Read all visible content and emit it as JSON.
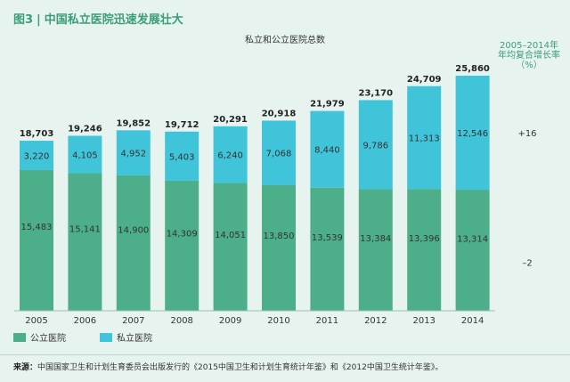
{
  "header": {
    "figure_label": "图3",
    "separator": "|",
    "title": "中国私立医院迅速发展壮大"
  },
  "growth_header": {
    "line1": "2005–2014年",
    "line2": "年均复合增长率",
    "line3": "（%）"
  },
  "legend": {
    "public": "公立医院",
    "private": "私立医院"
  },
  "source": {
    "label": "来源：",
    "text": "中国国家卫生和计划生育委员会出版发行的《2015中国卫生和计划生育统计年鉴》和《2012中国卫生统计年鉴》。"
  },
  "colors": {
    "public": "#4daf8a",
    "private": "#40c4d9",
    "accent": "#3a9e78"
  },
  "chart_data": {
    "type": "bar",
    "stacked": true,
    "title": "私立和公立医院总数",
    "categories": [
      "2005",
      "2006",
      "2007",
      "2008",
      "2009",
      "2010",
      "2011",
      "2012",
      "2013",
      "2014"
    ],
    "series": [
      {
        "name": "公立医院",
        "values": [
          15483,
          15141,
          14900,
          14309,
          14051,
          13850,
          13539,
          13384,
          13396,
          13314
        ],
        "labels": [
          "15,483",
          "15,141",
          "14,900",
          "14,309",
          "14,051",
          "13,850",
          "13,539",
          "13,384",
          "13,396",
          "13,314"
        ]
      },
      {
        "name": "私立医院",
        "values": [
          3220,
          4105,
          4952,
          5403,
          6240,
          7068,
          8440,
          9786,
          11313,
          12546
        ],
        "labels": [
          "3,220",
          "4,105",
          "4,952",
          "5,403",
          "6,240",
          "7,068",
          "8,440",
          "9,786",
          "11,313",
          "12,546"
        ]
      }
    ],
    "totals": [
      18703,
      19246,
      19852,
      19712,
      20291,
      20918,
      21979,
      23170,
      24709,
      25860
    ],
    "total_labels": [
      "18,703",
      "19,246",
      "19,852",
      "19,712",
      "20,291",
      "20,918",
      "21,979",
      "23,170",
      "24,709",
      "25,860"
    ],
    "growth_rates": {
      "私立医院": "+16",
      "公立医院": "–2"
    },
    "ylim": [
      0,
      28000
    ],
    "grid": false,
    "legend_position": "bottom-left"
  }
}
